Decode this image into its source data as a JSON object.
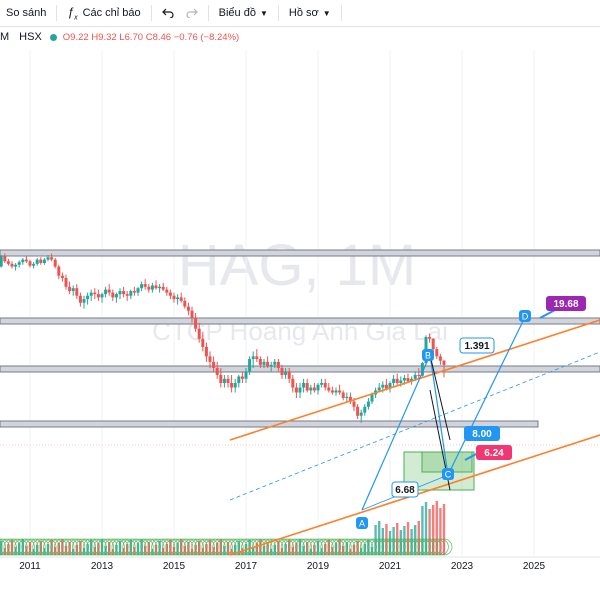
{
  "toolbar": {
    "compare_label": "So sánh",
    "indicators_label": "Các chỉ báo",
    "undo_icon": "undo-icon",
    "redo_icon": "redo-icon",
    "chart_label": "Biểu đồ",
    "profile_label": "Hồ sơ"
  },
  "legend": {
    "symbol_prefix": "M",
    "exchange": "HSX",
    "ohlc_text": "O9.22 H9.32 L6.70 C8.46 −0.76 (−8.24%)"
  },
  "colors": {
    "up": "#26a69a",
    "down": "#ef5350",
    "channel": "#ff7f27",
    "pattern": "#2196f3",
    "label_blue": "#2196f3",
    "label_red": "#f23672",
    "label_purple": "#9c27b0"
  },
  "watermark": {
    "symbol": "HAG, 1M",
    "name": "CTCP Hoàng Anh Gia Lai"
  },
  "chart_data": {
    "type": "candlestick",
    "symbol": "HAG",
    "interval": "1M",
    "x_ticks": [
      "2011",
      "2013",
      "2015",
      "2017",
      "2019",
      "2021",
      "2023",
      "2025"
    ],
    "price_labels": [
      {
        "value": "19.68",
        "style": "purple"
      },
      {
        "value": "1.391",
        "style": "blue"
      },
      {
        "value": "8.00",
        "style": "blue"
      },
      {
        "value": "6.24",
        "style": "red"
      },
      {
        "value": "6.68",
        "style": "blue"
      }
    ],
    "pattern_points": [
      "A",
      "B",
      "C",
      "D"
    ],
    "candles": [
      [
        2010.0,
        62,
        66,
        58,
        60
      ],
      [
        2010.1,
        60,
        63,
        54,
        56
      ],
      [
        2010.2,
        56,
        70,
        55,
        68
      ],
      [
        2010.3,
        68,
        72,
        60,
        62
      ],
      [
        2010.4,
        62,
        65,
        57,
        59
      ],
      [
        2010.5,
        59,
        62,
        54,
        56
      ],
      [
        2010.6,
        56,
        60,
        52,
        58
      ],
      [
        2010.7,
        58,
        63,
        55,
        61
      ],
      [
        2010.8,
        61,
        66,
        58,
        64
      ],
      [
        2010.9,
        64,
        68,
        60,
        62
      ],
      [
        2011.0,
        62,
        64,
        55,
        57
      ],
      [
        2011.1,
        57,
        61,
        54,
        59
      ],
      [
        2011.2,
        59,
        66,
        57,
        64
      ],
      [
        2011.3,
        64,
        67,
        58,
        60
      ],
      [
        2011.4,
        60,
        66,
        58,
        64
      ],
      [
        2011.5,
        64,
        70,
        62,
        67
      ],
      [
        2011.6,
        67,
        72,
        62,
        64
      ],
      [
        2011.7,
        64,
        66,
        54,
        56
      ],
      [
        2011.8,
        56,
        58,
        44,
        47
      ],
      [
        2011.9,
        47,
        50,
        42,
        45
      ],
      [
        2012.0,
        45,
        48,
        36,
        38
      ],
      [
        2012.1,
        38,
        42,
        33,
        35
      ],
      [
        2012.2,
        35,
        39,
        32,
        37
      ],
      [
        2012.3,
        37,
        40,
        30,
        32
      ],
      [
        2012.4,
        32,
        34,
        26,
        28
      ],
      [
        2012.5,
        28,
        32,
        25,
        30
      ],
      [
        2012.6,
        30,
        34,
        27,
        32
      ],
      [
        2012.7,
        32,
        36,
        29,
        34
      ],
      [
        2012.8,
        34,
        37,
        30,
        33
      ],
      [
        2012.9,
        33,
        36,
        29,
        31
      ],
      [
        2013.0,
        31,
        34,
        28,
        33
      ],
      [
        2013.1,
        33,
        38,
        31,
        36
      ],
      [
        2013.2,
        36,
        40,
        32,
        34
      ],
      [
        2013.3,
        34,
        36,
        29,
        31
      ],
      [
        2013.4,
        31,
        34,
        28,
        33
      ],
      [
        2013.5,
        33,
        37,
        30,
        35
      ],
      [
        2013.6,
        35,
        38,
        31,
        33
      ],
      [
        2013.7,
        33,
        35,
        29,
        32
      ],
      [
        2013.8,
        32,
        36,
        30,
        35
      ],
      [
        2013.9,
        35,
        38,
        32,
        34
      ],
      [
        2014.0,
        34,
        38,
        32,
        37
      ],
      [
        2014.1,
        37,
        42,
        35,
        40
      ],
      [
        2014.2,
        40,
        44,
        36,
        38
      ],
      [
        2014.3,
        38,
        40,
        34,
        36
      ],
      [
        2014.4,
        36,
        41,
        34,
        39
      ],
      [
        2014.5,
        39,
        43,
        36,
        37
      ],
      [
        2014.6,
        37,
        40,
        34,
        38
      ],
      [
        2014.7,
        38,
        41,
        35,
        36
      ],
      [
        2014.8,
        36,
        38,
        32,
        34
      ],
      [
        2014.9,
        34,
        36,
        30,
        32
      ],
      [
        2015.0,
        32,
        34,
        28,
        30
      ],
      [
        2015.1,
        30,
        33,
        27,
        31
      ],
      [
        2015.2,
        31,
        34,
        28,
        29
      ],
      [
        2015.3,
        29,
        31,
        25,
        26
      ],
      [
        2015.4,
        26,
        28,
        22,
        24
      ],
      [
        2015.5,
        24,
        26,
        19,
        21
      ],
      [
        2015.6,
        21,
        23,
        16,
        17
      ],
      [
        2015.7,
        17,
        19,
        13,
        14
      ],
      [
        2015.8,
        14,
        16,
        11,
        12
      ],
      [
        2015.9,
        12,
        13,
        9,
        10
      ],
      [
        2016.0,
        10,
        11,
        8,
        9
      ],
      [
        2016.1,
        9,
        10,
        7.5,
        8
      ],
      [
        2016.2,
        8,
        9,
        6.5,
        7
      ],
      [
        2016.3,
        7,
        8,
        5.5,
        6
      ],
      [
        2016.4,
        6,
        7,
        5.5,
        6.5
      ],
      [
        2016.5,
        6.5,
        7,
        5.5,
        6
      ],
      [
        2016.6,
        6,
        7,
        5,
        5.5
      ],
      [
        2016.7,
        5.5,
        6.5,
        5,
        6
      ],
      [
        2016.8,
        6,
        7,
        5.5,
        6.8
      ],
      [
        2016.9,
        6.8,
        7.5,
        6,
        6.5
      ],
      [
        2017.0,
        6.5,
        8,
        6,
        7.5
      ],
      [
        2017.1,
        7.5,
        10,
        7,
        9.5
      ],
      [
        2017.2,
        9.5,
        11,
        8,
        10
      ],
      [
        2017.3,
        10,
        11.5,
        9,
        9.5
      ],
      [
        2017.4,
        9.5,
        10,
        8,
        8.5
      ],
      [
        2017.5,
        8.5,
        9.5,
        8,
        9
      ],
      [
        2017.6,
        9,
        10,
        8,
        8.2
      ],
      [
        2017.7,
        8.2,
        9,
        7.5,
        8.5
      ],
      [
        2017.8,
        8.5,
        9.5,
        8,
        9
      ],
      [
        2017.9,
        9,
        9.5,
        7.5,
        8
      ],
      [
        2018.0,
        8,
        8.5,
        6.5,
        7
      ],
      [
        2018.1,
        7,
        8,
        6.5,
        7.5
      ],
      [
        2018.2,
        7.5,
        8,
        6,
        6.5
      ],
      [
        2018.3,
        6.5,
        7,
        5,
        5.5
      ],
      [
        2018.4,
        5.5,
        6,
        4.5,
        5
      ],
      [
        2018.5,
        5,
        6,
        4.5,
        5.5
      ],
      [
        2018.6,
        5.5,
        6.5,
        5,
        6
      ],
      [
        2018.7,
        6,
        6.5,
        5,
        5.2
      ],
      [
        2018.8,
        5.2,
        5.8,
        4.8,
        5.5
      ],
      [
        2018.9,
        5.5,
        6,
        5,
        5.2
      ],
      [
        2019.0,
        5.2,
        6,
        4.8,
        5.8
      ],
      [
        2019.1,
        5.8,
        6.5,
        5.5,
        6
      ],
      [
        2019.2,
        6,
        6.5,
        5.2,
        5.5
      ],
      [
        2019.3,
        5.5,
        6,
        5,
        5.2
      ],
      [
        2019.4,
        5.2,
        5.6,
        4.8,
        5
      ],
      [
        2019.5,
        5,
        5.5,
        4.7,
        5.2
      ],
      [
        2019.6,
        5.2,
        5.8,
        4.8,
        5
      ],
      [
        2019.7,
        5,
        5.2,
        4.3,
        4.5
      ],
      [
        2019.8,
        4.5,
        5,
        4.2,
        4.6
      ],
      [
        2019.9,
        4.6,
        5,
        4,
        4.2
      ],
      [
        2020.0,
        4.2,
        4.5,
        3.5,
        3.8
      ],
      [
        2020.1,
        3.8,
        4,
        3,
        3.2
      ],
      [
        2020.2,
        3.2,
        3.6,
        2.8,
        3.4
      ],
      [
        2020.3,
        3.4,
        4,
        3.2,
        3.8
      ],
      [
        2020.4,
        3.8,
        4.5,
        3.6,
        4.2
      ],
      [
        2020.5,
        4.2,
        5,
        4,
        4.8
      ],
      [
        2020.6,
        4.8,
        5.5,
        4.5,
        5.2
      ],
      [
        2020.7,
        5.2,
        6,
        5,
        5.5
      ],
      [
        2020.8,
        5.5,
        6.2,
        5,
        5.8
      ],
      [
        2020.9,
        5.8,
        6.5,
        5.2,
        5.4
      ],
      [
        2021.0,
        5.4,
        6.2,
        5,
        6
      ],
      [
        2021.1,
        6,
        7,
        5.5,
        6.5
      ],
      [
        2021.2,
        6.5,
        7.2,
        5.8,
        6
      ],
      [
        2021.3,
        6,
        6.8,
        5.6,
        6.3
      ],
      [
        2021.4,
        6.3,
        7,
        5.8,
        6.6
      ],
      [
        2021.5,
        6.6,
        7.2,
        6,
        6.2
      ],
      [
        2021.6,
        6.2,
        6.8,
        5.8,
        6.5
      ],
      [
        2021.7,
        6.5,
        7.5,
        6.2,
        7
      ],
      [
        2021.8,
        7,
        8,
        6.5,
        6.9
      ],
      [
        2021.9,
        6.9,
        9,
        6.8,
        8.8
      ],
      [
        2022.0,
        8.8,
        15,
        8.5,
        14.5
      ],
      [
        2022.1,
        14.5,
        15.5,
        13,
        14
      ],
      [
        2022.2,
        14,
        14.2,
        11,
        11.5
      ],
      [
        2022.3,
        11.5,
        12,
        9.5,
        10
      ],
      [
        2022.4,
        10,
        10.5,
        8.5,
        9.2
      ],
      [
        2022.5,
        9.2,
        9.3,
        6.7,
        8.5
      ]
    ]
  }
}
